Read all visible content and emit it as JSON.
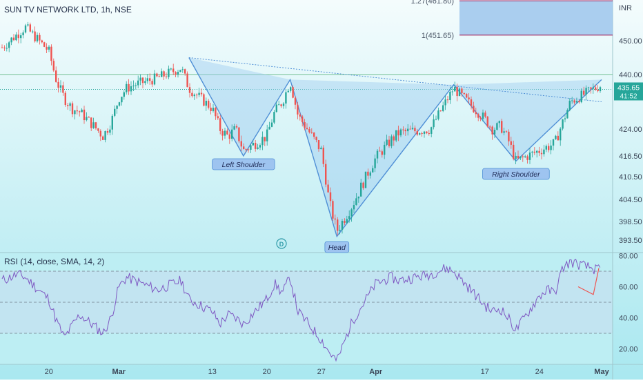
{
  "header": {
    "title": "SUN TV NETWORK LTD, 1h, NSE",
    "currency": "INR"
  },
  "chart_data": [
    {
      "type": "candlestick",
      "title": "SUN TV NETWORK LTD, 1h, NSE",
      "y_axis": {
        "label": "INR",
        "ticks": [
          "450.00",
          "440.00",
          "424.00",
          "416.50",
          "410.50",
          "404.50",
          "398.50",
          "393.50"
        ]
      },
      "x_axis": {
        "ticks": [
          "20",
          "Mar",
          "13",
          "20",
          "27",
          "Apr",
          "17",
          "24",
          "May"
        ]
      },
      "last_price": "435.65",
      "countdown": "41:52",
      "fib_levels": [
        {
          "label": "1.27(461.80)",
          "value": 461.8
        },
        {
          "label": "1(451.65)",
          "value": 451.65
        }
      ],
      "resistance_level": 440.0,
      "price_path": [
        [
          "02-14",
          448
        ],
        [
          "02-16",
          452
        ],
        [
          "02-17",
          454
        ],
        [
          "02-20",
          447
        ],
        [
          "02-21",
          438
        ],
        [
          "02-22",
          433
        ],
        [
          "02-23",
          430
        ],
        [
          "02-24",
          429
        ],
        [
          "02-27",
          422
        ],
        [
          "02-28",
          426
        ],
        [
          "03-01",
          433
        ],
        [
          "03-02",
          436
        ],
        [
          "03-03",
          437
        ],
        [
          "03-06",
          439
        ],
        [
          "03-08",
          441
        ],
        [
          "03-09",
          442
        ],
        [
          "03-10",
          436
        ],
        [
          "03-13",
          430
        ],
        [
          "03-14",
          424
        ],
        [
          "03-15",
          422
        ],
        [
          "03-16",
          424
        ],
        [
          "03-17",
          418
        ],
        [
          "03-20",
          422
        ],
        [
          "03-21",
          429
        ],
        [
          "03-22",
          432
        ],
        [
          "03-23",
          438
        ],
        [
          "03-24",
          428
        ],
        [
          "03-27",
          418
        ],
        [
          "03-28",
          404
        ],
        [
          "03-29",
          396
        ],
        [
          "03-31",
          403
        ],
        [
          "04-03",
          416
        ],
        [
          "04-05",
          421
        ],
        [
          "04-06",
          423
        ],
        [
          "04-10",
          424
        ],
        [
          "04-11",
          428
        ],
        [
          "04-12",
          432
        ],
        [
          "04-13",
          436
        ],
        [
          "04-17",
          427
        ],
        [
          "04-18",
          424
        ],
        [
          "04-19",
          425
        ],
        [
          "04-20",
          421
        ],
        [
          "04-21",
          415
        ],
        [
          "04-24",
          418
        ],
        [
          "04-25",
          419
        ],
        [
          "04-26",
          420
        ],
        [
          "04-27",
          426
        ],
        [
          "04-28",
          432
        ],
        [
          "05-02",
          437
        ]
      ],
      "pattern": {
        "name": "Head and Shoulders (inverse)",
        "points": [
          [
            "03-10",
            445
          ],
          [
            "03-17",
            416.5
          ],
          [
            "03-23",
            438.5
          ],
          [
            "03-29",
            394.5
          ],
          [
            "04-13",
            437
          ],
          [
            "04-21",
            415
          ],
          [
            "05-02",
            438.5
          ]
        ],
        "neckline": [
          [
            "03-10",
            445
          ],
          [
            "05-02",
            432
          ]
        ],
        "labels": [
          "Left Shoulder",
          "Head",
          "Right Shoulder"
        ]
      },
      "marker": "D"
    },
    {
      "type": "line",
      "title": "RSI (14, close, SMA, 14, 2)",
      "y_axis": {
        "ticks": [
          "80.00",
          "60.00",
          "40.00",
          "20.00"
        ],
        "range": [
          10,
          82
        ]
      },
      "levels": [
        70,
        50,
        30
      ],
      "values": [
        [
          "02-14",
          64
        ],
        [
          "02-16",
          68
        ],
        [
          "02-17",
          66
        ],
        [
          "02-20",
          52
        ],
        [
          "02-21",
          38
        ],
        [
          "02-22",
          27
        ],
        [
          "02-23",
          35
        ],
        [
          "02-24",
          42
        ],
        [
          "02-27",
          30
        ],
        [
          "02-28",
          40
        ],
        [
          "03-01",
          60
        ],
        [
          "03-02",
          66
        ],
        [
          "03-03",
          64
        ],
        [
          "03-06",
          58
        ],
        [
          "03-08",
          62
        ],
        [
          "03-09",
          64
        ],
        [
          "03-10",
          52
        ],
        [
          "03-13",
          44
        ],
        [
          "03-14",
          36
        ],
        [
          "03-15",
          42
        ],
        [
          "03-16",
          40
        ],
        [
          "03-17",
          36
        ],
        [
          "03-20",
          52
        ],
        [
          "03-21",
          62
        ],
        [
          "03-22",
          56
        ],
        [
          "03-23",
          66
        ],
        [
          "03-24",
          44
        ],
        [
          "03-27",
          26
        ],
        [
          "03-28",
          18
        ],
        [
          "03-29",
          12
        ],
        [
          "03-31",
          38
        ],
        [
          "04-03",
          62
        ],
        [
          "04-05",
          66
        ],
        [
          "04-06",
          64
        ],
        [
          "04-10",
          68
        ],
        [
          "04-11",
          70
        ],
        [
          "04-12",
          72
        ],
        [
          "04-13",
          70
        ],
        [
          "04-17",
          48
        ],
        [
          "04-18",
          44
        ],
        [
          "04-19",
          46
        ],
        [
          "04-20",
          40
        ],
        [
          "04-21",
          32
        ],
        [
          "04-24",
          54
        ],
        [
          "04-25",
          58
        ],
        [
          "04-26",
          56
        ],
        [
          "04-27",
          72
        ],
        [
          "04-28",
          76
        ],
        [
          "05-02",
          70
        ]
      ]
    }
  ],
  "colors": {
    "up": "#26a69a",
    "down": "#ef5350",
    "pattern": "#4f8fd6",
    "rsi": "#7e57c2",
    "fib_fill": "#9ec5ec",
    "fib_line": "#a01a58"
  }
}
